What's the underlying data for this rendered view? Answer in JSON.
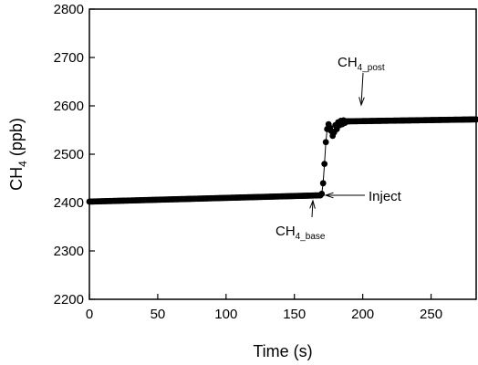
{
  "chart_data": {
    "type": "scatter",
    "xlabel": "Time (s)",
    "ylabel_main": "CH",
    "ylabel_sub": "4",
    "ylabel_unit": " (ppb)",
    "xlim": [
      0,
      283
    ],
    "ylim": [
      2200,
      2800
    ],
    "xticks": [
      0,
      50,
      100,
      150,
      200,
      250
    ],
    "yticks": [
      2200,
      2300,
      2400,
      2500,
      2600,
      2700,
      2800
    ],
    "grid": false,
    "series": [
      {
        "baseline": {
          "x_start": 0,
          "x_end": 169,
          "y_start": 2402,
          "y_end": 2415,
          "step": 1
        },
        "rise": [
          {
            "x": 170,
            "y": 2418
          },
          {
            "x": 171,
            "y": 2440
          },
          {
            "x": 172,
            "y": 2480
          },
          {
            "x": 173,
            "y": 2525
          },
          {
            "x": 174,
            "y": 2552
          },
          {
            "x": 175,
            "y": 2562
          },
          {
            "x": 176,
            "y": 2555
          },
          {
            "x": 177,
            "y": 2548
          },
          {
            "x": 178,
            "y": 2538
          },
          {
            "x": 179,
            "y": 2545
          },
          {
            "x": 180,
            "y": 2560
          },
          {
            "x": 181,
            "y": 2552
          },
          {
            "x": 182,
            "y": 2566
          },
          {
            "x": 183,
            "y": 2560
          },
          {
            "x": 184,
            "y": 2569
          },
          {
            "x": 185,
            "y": 2562
          },
          {
            "x": 186,
            "y": 2570
          },
          {
            "x": 187,
            "y": 2565
          },
          {
            "x": 188,
            "y": 2568
          }
        ],
        "post": {
          "x_start": 189,
          "x_end": 283,
          "y_start": 2568,
          "y_end": 2572,
          "step": 1
        }
      }
    ],
    "annotations": [
      {
        "id": "post",
        "main": "CH",
        "sub": "4_post",
        "target_x": 198,
        "target_y": 2573
      },
      {
        "id": "inject",
        "main": "Inject",
        "sub": "",
        "target_x": 172,
        "target_y": 2417
      },
      {
        "id": "base",
        "main": "CH",
        "sub": "4_base",
        "target_x": 168,
        "target_y": 2413
      }
    ]
  }
}
